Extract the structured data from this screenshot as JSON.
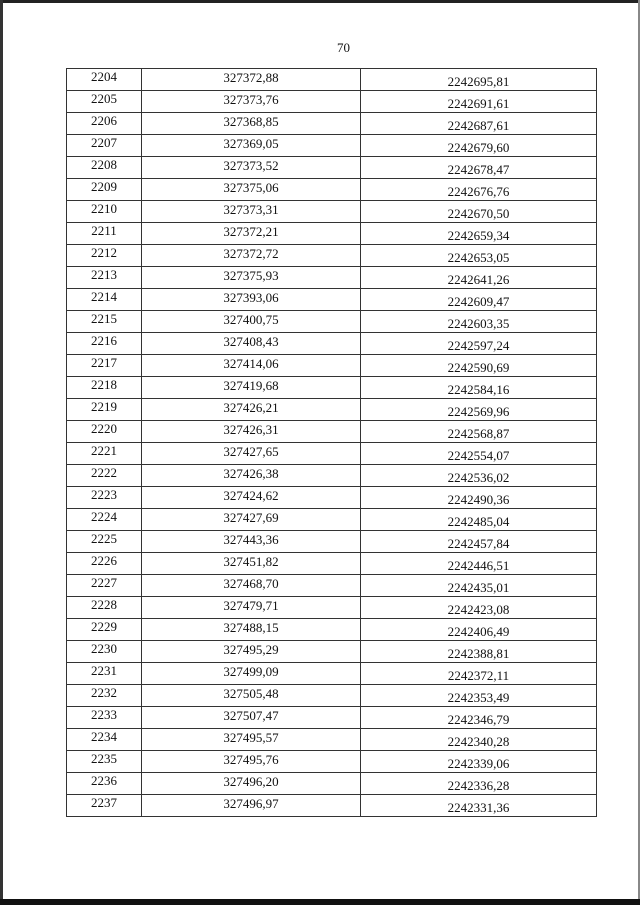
{
  "page_number": "70",
  "table": {
    "rows": [
      [
        "2204",
        "327372,88",
        "2242695,81"
      ],
      [
        "2205",
        "327373,76",
        "2242691,61"
      ],
      [
        "2206",
        "327368,85",
        "2242687,61"
      ],
      [
        "2207",
        "327369,05",
        "2242679,60"
      ],
      [
        "2208",
        "327373,52",
        "2242678,47"
      ],
      [
        "2209",
        "327375,06",
        "2242676,76"
      ],
      [
        "2210",
        "327373,31",
        "2242670,50"
      ],
      [
        "2211",
        "327372,21",
        "2242659,34"
      ],
      [
        "2212",
        "327372,72",
        "2242653,05"
      ],
      [
        "2213",
        "327375,93",
        "2242641,26"
      ],
      [
        "2214",
        "327393,06",
        "2242609,47"
      ],
      [
        "2215",
        "327400,75",
        "2242603,35"
      ],
      [
        "2216",
        "327408,43",
        "2242597,24"
      ],
      [
        "2217",
        "327414,06",
        "2242590,69"
      ],
      [
        "2218",
        "327419,68",
        "2242584,16"
      ],
      [
        "2219",
        "327426,21",
        "2242569,96"
      ],
      [
        "2220",
        "327426,31",
        "2242568,87"
      ],
      [
        "2221",
        "327427,65",
        "2242554,07"
      ],
      [
        "2222",
        "327426,38",
        "2242536,02"
      ],
      [
        "2223",
        "327424,62",
        "2242490,36"
      ],
      [
        "2224",
        "327427,69",
        "2242485,04"
      ],
      [
        "2225",
        "327443,36",
        "2242457,84"
      ],
      [
        "2226",
        "327451,82",
        "2242446,51"
      ],
      [
        "2227",
        "327468,70",
        "2242435,01"
      ],
      [
        "2228",
        "327479,71",
        "2242423,08"
      ],
      [
        "2229",
        "327488,15",
        "2242406,49"
      ],
      [
        "2230",
        "327495,29",
        "2242388,81"
      ],
      [
        "2231",
        "327499,09",
        "2242372,11"
      ],
      [
        "2232",
        "327505,48",
        "2242353,49"
      ],
      [
        "2233",
        "327507,47",
        "2242346,79"
      ],
      [
        "2234",
        "327495,57",
        "2242340,28"
      ],
      [
        "2235",
        "327495,76",
        "2242339,06"
      ],
      [
        "2236",
        "327496,20",
        "2242336,28"
      ],
      [
        "2237",
        "327496,97",
        "2242331,36"
      ]
    ]
  }
}
